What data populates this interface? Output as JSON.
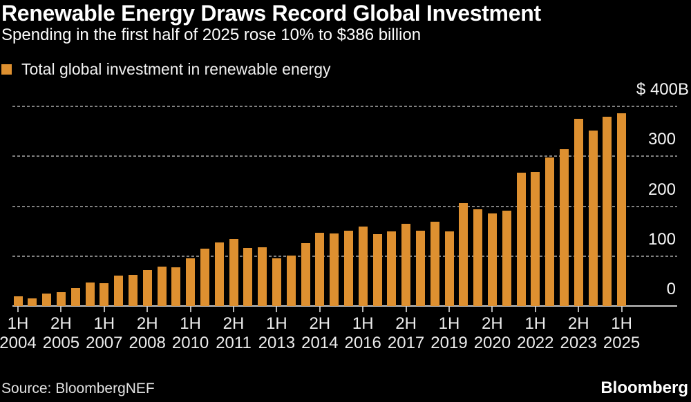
{
  "header": {
    "title": "Renewable Energy Draws Record Global Investment",
    "subtitle": "Spending in the first half of 2025 rose 10% to $386 billion"
  },
  "legend": {
    "label": "Total global investment in renewable energy"
  },
  "footer": {
    "source": "Source: BloombergNEF",
    "logo": "Bloomberg"
  },
  "chart_data": {
    "type": "bar",
    "title": "Renewable Energy Draws Record Global Investment",
    "subtitle": "Spending in the first half of 2025 rose 10% to $386 billion",
    "series_name": "Total global investment in renewable energy",
    "unit": "USD billions",
    "bar_color": "#DE9030",
    "background_color": "#000000",
    "grid": "dotted-horizontal",
    "legend_position": "top-left",
    "y_axis_side": "right",
    "ylim": [
      0,
      400
    ],
    "x": [
      "1H 2004",
      "2H 2004",
      "1H 2005",
      "2H 2005",
      "1H 2006",
      "2H 2006",
      "1H 2007",
      "2H 2007",
      "1H 2008",
      "2H 2008",
      "1H 2009",
      "2H 2009",
      "1H 2010",
      "2H 2010",
      "1H 2011",
      "2H 2011",
      "1H 2012",
      "2H 2012",
      "1H 2013",
      "2H 2013",
      "1H 2014",
      "2H 2014",
      "1H 2015",
      "2H 2015",
      "1H 2016",
      "2H 2016",
      "1H 2017",
      "2H 2017",
      "1H 2018",
      "2H 2018",
      "1H 2019",
      "2H 2019",
      "1H 2020",
      "2H 2020",
      "1H 2021",
      "2H 2021",
      "1H 2022",
      "2H 2022",
      "1H 2023",
      "2H 2023",
      "1H 2024",
      "2H 2024",
      "1H 2025"
    ],
    "values": [
      19,
      15,
      25,
      28,
      36,
      47,
      46,
      61,
      62,
      72,
      79,
      78,
      95,
      115,
      128,
      135,
      117,
      118,
      95,
      101,
      126,
      147,
      146,
      151,
      159,
      144,
      150,
      165,
      151,
      169,
      150,
      206,
      194,
      186,
      191,
      267,
      269,
      298,
      314,
      375,
      351,
      379,
      386
    ],
    "y_ticks": [
      {
        "value": 400,
        "label": "$ 400B"
      },
      {
        "value": 300,
        "label": "300"
      },
      {
        "value": 200,
        "label": "200"
      },
      {
        "value": 100,
        "label": "100"
      },
      {
        "value": 0,
        "label": "0"
      }
    ],
    "x_ticks": [
      {
        "bar_index": 0,
        "half": "1H",
        "year": "2004"
      },
      {
        "bar_index": 3,
        "half": "2H",
        "year": "2005"
      },
      {
        "bar_index": 6,
        "half": "1H",
        "year": "2007"
      },
      {
        "bar_index": 9,
        "half": "2H",
        "year": "2008"
      },
      {
        "bar_index": 12,
        "half": "1H",
        "year": "2010"
      },
      {
        "bar_index": 15,
        "half": "2H",
        "year": "2011"
      },
      {
        "bar_index": 18,
        "half": "1H",
        "year": "2013"
      },
      {
        "bar_index": 21,
        "half": "2H",
        "year": "2014"
      },
      {
        "bar_index": 24,
        "half": "1H",
        "year": "2016"
      },
      {
        "bar_index": 27,
        "half": "2H",
        "year": "2017"
      },
      {
        "bar_index": 30,
        "half": "1H",
        "year": "2019"
      },
      {
        "bar_index": 33,
        "half": "2H",
        "year": "2020"
      },
      {
        "bar_index": 36,
        "half": "1H",
        "year": "2022"
      },
      {
        "bar_index": 39,
        "half": "2H",
        "year": "2023"
      },
      {
        "bar_index": 42,
        "half": "1H",
        "year": "2025"
      }
    ]
  }
}
